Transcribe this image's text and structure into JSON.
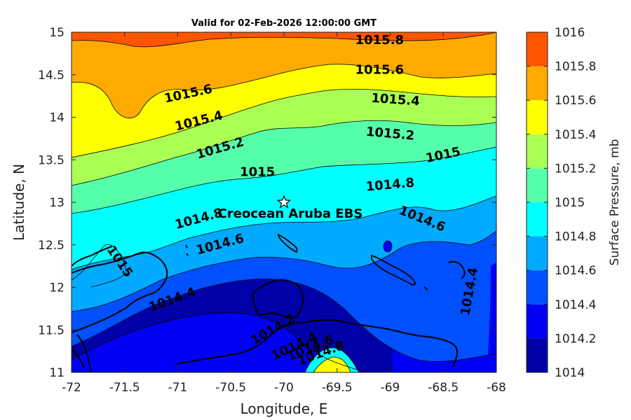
{
  "title": "Valid for 02-Feb-2026 12:00:00 GMT",
  "xlabel": "Longitude, E",
  "ylabel": "Latitude, N",
  "colorbar_label": "Surface Pressure, mb",
  "x_ticks": [
    "-72",
    "-71.5",
    "-71",
    "-70.5",
    "-70",
    "-69.5",
    "-69",
    "-68.5",
    "-68"
  ],
  "y_ticks": [
    "15",
    "14.5",
    "14",
    "13.5",
    "13",
    "12.5",
    "12",
    "11.5",
    "11"
  ],
  "colorbar_ticks": [
    "1016",
    "1015.8",
    "1015.6",
    "1015.4",
    "1015.2",
    "1015",
    "1014.8",
    "1014.6",
    "1014.4",
    "1014.2",
    "1014"
  ],
  "levels": [
    {
      "value": 1014.0,
      "color": "#0000a8"
    },
    {
      "value": 1014.2,
      "color": "#0000f5"
    },
    {
      "value": 1014.4,
      "color": "#0050ff"
    },
    {
      "value": 1014.6,
      "color": "#00aaff"
    },
    {
      "value": 1014.8,
      "color": "#00ffff"
    },
    {
      "value": 1015.0,
      "color": "#55ffaa"
    },
    {
      "value": 1015.2,
      "color": "#aaff55"
    },
    {
      "value": 1015.4,
      "color": "#ffff00"
    },
    {
      "value": 1015.6,
      "color": "#ffaa00"
    },
    {
      "value": 1015.8,
      "color": "#ff5500"
    },
    {
      "value": 1016.0,
      "color": "#ff0000"
    }
  ],
  "station": {
    "name": "Creocean Aruba EBS",
    "lon": -70.0,
    "lat": 13.0
  },
  "contour_labels": [
    {
      "text": "1015.8",
      "lon": -69.1,
      "lat": 14.9,
      "angle": 0
    },
    {
      "text": "1015.6",
      "lon": -69.1,
      "lat": 14.55,
      "angle": 0
    },
    {
      "text": "1015.6",
      "lon": -70.9,
      "lat": 14.27,
      "angle": -12
    },
    {
      "text": "1015.4",
      "lon": -68.95,
      "lat": 14.2,
      "angle": 4
    },
    {
      "text": "1015.4",
      "lon": -70.8,
      "lat": 13.95,
      "angle": -14
    },
    {
      "text": "1015.2",
      "lon": -69.0,
      "lat": 13.8,
      "angle": 5
    },
    {
      "text": "1015.2",
      "lon": -70.6,
      "lat": 13.63,
      "angle": -16
    },
    {
      "text": "1015",
      "lon": -68.5,
      "lat": 13.55,
      "angle": -12
    },
    {
      "text": "1015",
      "lon": -70.25,
      "lat": 13.35,
      "angle": 0
    },
    {
      "text": "1014.8",
      "lon": -69.0,
      "lat": 13.2,
      "angle": -5
    },
    {
      "text": "1014.8",
      "lon": -70.8,
      "lat": 12.8,
      "angle": -15
    },
    {
      "text": "1014.6",
      "lon": -68.7,
      "lat": 12.8,
      "angle": 22
    },
    {
      "text": "1014.6",
      "lon": -70.6,
      "lat": 12.5,
      "angle": -15
    },
    {
      "text": "1015",
      "lon": -71.55,
      "lat": 12.3,
      "angle": 55
    },
    {
      "text": "1014.4",
      "lon": -71.05,
      "lat": 11.85,
      "angle": -20
    },
    {
      "text": "1014.4",
      "lon": -68.25,
      "lat": 11.95,
      "angle": -80
    },
    {
      "text": "1014.2",
      "lon": -70.1,
      "lat": 11.5,
      "angle": -30
    },
    {
      "text": "1014.4",
      "lon": -69.9,
      "lat": 11.3,
      "angle": -25
    },
    {
      "text": "1014.6",
      "lon": -69.75,
      "lat": 11.28,
      "angle": -22
    },
    {
      "text": "1014.8",
      "lon": -69.65,
      "lat": 11.22,
      "angle": -20
    }
  ]
}
